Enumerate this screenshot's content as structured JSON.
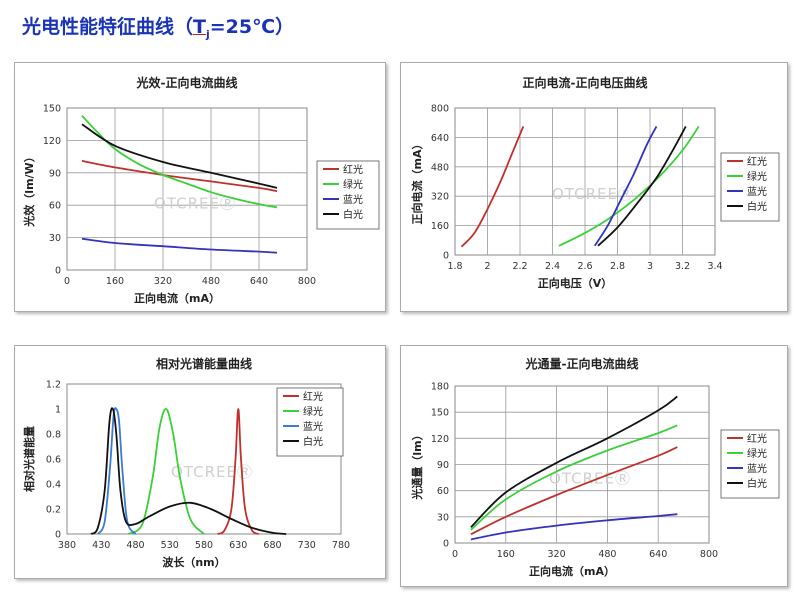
{
  "page": {
    "title_prefix": "光电性能特征曲线（",
    "title_t": "T",
    "title_sub": "j",
    "title_suffix": "=25℃）"
  },
  "watermark": "OTCREEⓇ",
  "chart_data": [
    {
      "type": "line",
      "title": "光效-正向电流曲线",
      "xlabel": "正向电流（mA）",
      "ylabel": "光效（lm/W）",
      "xlim": [
        0,
        800
      ],
      "ylim": [
        0,
        150
      ],
      "xticks": [
        "0",
        "160",
        "320",
        "480",
        "640",
        "800"
      ],
      "yticks": [
        "0",
        "30",
        "60",
        "90",
        "120",
        "150"
      ],
      "grid": true,
      "legend": "right",
      "series": [
        {
          "name": "红光",
          "color": "#c0312b",
          "x": [
            50,
            160,
            320,
            480,
            640,
            700
          ],
          "y": [
            101,
            95,
            88,
            82,
            76,
            73
          ]
        },
        {
          "name": "绿光",
          "color": "#39d038",
          "x": [
            50,
            100,
            160,
            240,
            320,
            400,
            480,
            560,
            640,
            700
          ],
          "y": [
            143,
            128,
            112,
            98,
            88,
            80,
            72,
            66,
            61,
            58
          ]
        },
        {
          "name": "蓝光",
          "color": "#3333bb",
          "x": [
            50,
            160,
            320,
            480,
            640,
            700
          ],
          "y": [
            29,
            25,
            22,
            19,
            17,
            16
          ]
        },
        {
          "name": "白光",
          "color": "#111111",
          "x": [
            50,
            160,
            320,
            480,
            640,
            700
          ],
          "y": [
            135,
            115,
            100,
            90,
            80,
            76
          ]
        }
      ]
    },
    {
      "type": "line",
      "title": "正向电流-正向电压曲线",
      "xlabel": "正向电压（V）",
      "ylabel": "正向电流（mA）",
      "xlim": [
        1.8,
        3.4
      ],
      "ylim": [
        0,
        800
      ],
      "xticks": [
        "1.8",
        "2",
        "2.2",
        "2.4",
        "2.6",
        "2.8",
        "3",
        "3.2",
        "3.4"
      ],
      "yticks": [
        "0",
        "160",
        "320",
        "480",
        "640",
        "800"
      ],
      "grid": true,
      "legend": "right",
      "series": [
        {
          "name": "红光",
          "color": "#c0312b",
          "x": [
            1.84,
            1.92,
            2.0,
            2.08,
            2.15,
            2.22
          ],
          "y": [
            45,
            120,
            250,
            400,
            550,
            700
          ]
        },
        {
          "name": "绿光",
          "color": "#39d038",
          "x": [
            2.44,
            2.6,
            2.75,
            2.9,
            3.05,
            3.2,
            3.3
          ],
          "y": [
            50,
            120,
            200,
            300,
            420,
            570,
            700
          ]
        },
        {
          "name": "蓝光",
          "color": "#3333bb",
          "x": [
            2.66,
            2.74,
            2.82,
            2.9,
            2.98,
            3.04
          ],
          "y": [
            50,
            160,
            300,
            440,
            600,
            700
          ]
        },
        {
          "name": "白光",
          "color": "#111111",
          "x": [
            2.68,
            2.8,
            2.92,
            3.04,
            3.14,
            3.22
          ],
          "y": [
            50,
            150,
            280,
            420,
            570,
            700
          ]
        }
      ]
    },
    {
      "type": "line",
      "title": "相对光谱能量曲线",
      "xlabel": "波长（nm）",
      "ylabel": "相对光谱能量",
      "xlim": [
        380,
        780
      ],
      "ylim": [
        0,
        1.2
      ],
      "xticks": [
        "380",
        "430",
        "480",
        "530",
        "580",
        "630",
        "680",
        "730",
        "780"
      ],
      "yticks": [
        "0",
        "0.2",
        "0.4",
        "0.6",
        "0.8",
        "1",
        "1.2"
      ],
      "grid": false,
      "legend": "top-right",
      "series": [
        {
          "name": "红光",
          "color": "#c0312b",
          "x": [
            600,
            610,
            620,
            626,
            630,
            634,
            640,
            650,
            660
          ],
          "y": [
            0,
            0.03,
            0.2,
            0.6,
            1.0,
            0.6,
            0.2,
            0.03,
            0
          ]
        },
        {
          "name": "绿光",
          "color": "#39d038",
          "x": [
            470,
            490,
            505,
            515,
            525,
            535,
            545,
            560,
            580
          ],
          "y": [
            0,
            0.08,
            0.45,
            0.85,
            1.0,
            0.8,
            0.45,
            0.12,
            0
          ]
        },
        {
          "name": "蓝光",
          "color": "#3b7bd6",
          "x": [
            425,
            435,
            443,
            448,
            452,
            456,
            461,
            468,
            480
          ],
          "y": [
            0,
            0.1,
            0.55,
            0.95,
            1.0,
            0.9,
            0.5,
            0.1,
            0
          ]
        },
        {
          "name": "白光",
          "color": "#111111",
          "x": [
            415,
            425,
            435,
            442,
            447,
            452,
            458,
            466,
            480,
            500,
            530,
            560,
            590,
            620,
            650,
            680,
            700
          ],
          "y": [
            0,
            0.05,
            0.35,
            0.9,
            1.0,
            0.8,
            0.35,
            0.1,
            0.08,
            0.14,
            0.22,
            0.25,
            0.2,
            0.12,
            0.05,
            0.01,
            0
          ]
        }
      ]
    },
    {
      "type": "line",
      "title": "光通量-正向电流曲线",
      "xlabel": "正向电流（mA）",
      "ylabel": "光通量（lm）",
      "xlim": [
        0,
        800
      ],
      "ylim": [
        0,
        180
      ],
      "xticks": [
        "0",
        "160",
        "320",
        "480",
        "640",
        "800"
      ],
      "yticks": [
        "0",
        "30",
        "60",
        "90",
        "120",
        "150",
        "180"
      ],
      "grid": true,
      "legend": "right",
      "series": [
        {
          "name": "红光",
          "color": "#c0312b",
          "x": [
            50,
            160,
            320,
            480,
            640,
            700
          ],
          "y": [
            10,
            30,
            55,
            78,
            100,
            110
          ]
        },
        {
          "name": "绿光",
          "color": "#39d038",
          "x": [
            50,
            160,
            320,
            480,
            640,
            700
          ],
          "y": [
            15,
            50,
            82,
            106,
            126,
            135
          ]
        },
        {
          "name": "蓝光",
          "color": "#3333bb",
          "x": [
            50,
            160,
            320,
            480,
            640,
            700
          ],
          "y": [
            4,
            12,
            20,
            26,
            31,
            33
          ]
        },
        {
          "name": "白光",
          "color": "#111111",
          "x": [
            50,
            160,
            320,
            480,
            640,
            700
          ],
          "y": [
            18,
            58,
            92,
            120,
            152,
            168
          ]
        }
      ]
    }
  ]
}
